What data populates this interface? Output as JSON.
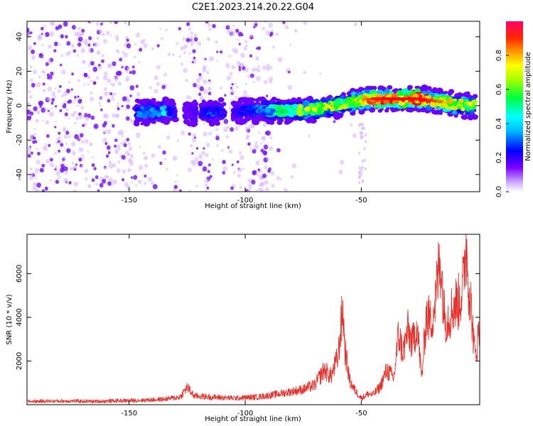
{
  "title": "C2E1.2023.214.20.22.G04",
  "colors": {
    "snr_line": "#e8302a",
    "scatter_light": "#d9b8ff",
    "scatter_dark": "#7a1cf0"
  },
  "chart_data": [
    {
      "type": "heatmap",
      "xlabel": "Height of straight line (km)",
      "ylabel": "Frequency (Hz)",
      "xlim": [
        -194,
        1
      ],
      "ylim": [
        -50,
        49
      ],
      "xticks": [
        -150,
        -100,
        -50
      ],
      "yticks": [
        -40,
        -20,
        0,
        20,
        40
      ],
      "grid": false,
      "colorbar": {
        "label": "Normalized spectral amplitude",
        "range": [
          0,
          1
        ],
        "ticks": [
          "0.0",
          "0.2",
          "0.4",
          "0.6",
          "0.8"
        ],
        "colormap": [
          "#ffffff",
          "#7b00ff",
          "#0000ff",
          "#00ffff",
          "#00ff00",
          "#ffff00",
          "#ff8000",
          "#ff0000",
          "#ff0066"
        ]
      },
      "ridge": {
        "x": [
          -147,
          -135,
          -125,
          -115,
          -105,
          -95,
          -85,
          -75,
          -65,
          -55,
          -45,
          -35,
          -25,
          -15,
          -5,
          -1
        ],
        "freq": [
          -4,
          -3,
          -4,
          -4,
          -3,
          -3,
          -3,
          -3,
          -1,
          2,
          4,
          4,
          4,
          2,
          0,
          0
        ],
        "amplitude": [
          0.3,
          0.35,
          0.15,
          0.3,
          0.2,
          0.3,
          0.45,
          0.55,
          0.6,
          0.55,
          0.8,
          0.85,
          0.85,
          0.7,
          0.6,
          0.55
        ]
      }
    },
    {
      "type": "line",
      "xlabel": "Height of straight line (km)",
      "ylabel": "SNR (10 * v/v)",
      "xlim": [
        -194,
        1
      ],
      "ylim": [
        0,
        7800
      ],
      "xticks": [
        -150,
        -100,
        -50
      ],
      "yticks": [
        2000,
        4000,
        6000
      ],
      "grid": false,
      "series": [
        {
          "x": [
            -194,
            -185,
            -175,
            -165,
            -155,
            -145,
            -135,
            -128,
            -125,
            -122,
            -115,
            -105,
            -95,
            -88,
            -80,
            -75,
            -70,
            -66,
            -63,
            -60,
            -58,
            -57,
            -55,
            -53,
            -50,
            -47,
            -45,
            -42,
            -39,
            -36,
            -34,
            -32,
            -30,
            -28,
            -26,
            -24,
            -22,
            -20,
            -18,
            -16,
            -14,
            -12,
            -10,
            -8,
            -6,
            -5,
            -4,
            -3,
            -2,
            -1,
            1
          ],
          "values": [
            150,
            160,
            170,
            150,
            180,
            200,
            250,
            350,
            800,
            400,
            350,
            300,
            350,
            450,
            600,
            700,
            900,
            1600,
            1300,
            2200,
            4400,
            2500,
            1100,
            700,
            300,
            500,
            450,
            800,
            1600,
            1200,
            3200,
            2400,
            3400,
            2800,
            3700,
            1200,
            4100,
            3800,
            4800,
            6900,
            3900,
            4100,
            4600,
            4700,
            5500,
            7600,
            6000,
            4800,
            3500,
            2200,
            3500
          ]
        }
      ]
    }
  ]
}
